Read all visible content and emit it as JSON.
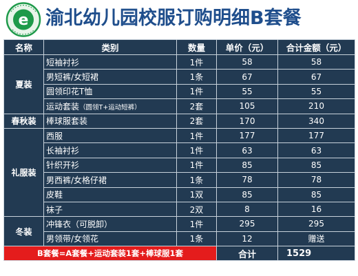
{
  "header": {
    "logo_text": "CHONGQING YUBEI KINDERGARTEN 渝北幼儿园",
    "title": "渝北幼儿园校服订购明细B套餐"
  },
  "columns": {
    "name": "名称",
    "type": "类别",
    "qty": "数量",
    "price": "单价（元）",
    "total": "合计金额（元）"
  },
  "groups": [
    {
      "name": "夏装",
      "rows": [
        {
          "type": "短袖衬衫",
          "type_note": "",
          "qty": "1件",
          "price": "58",
          "total": "58"
        },
        {
          "type": "男短裤/女短裙",
          "type_note": "",
          "qty": "1条",
          "price": "67",
          "total": "67"
        },
        {
          "type": "圆领印花T恤",
          "type_note": "",
          "qty": "1件",
          "price": "55",
          "total": "55"
        },
        {
          "type": "运动套装",
          "type_note": "（圆领T+运动短裤）",
          "qty": "2套",
          "price": "105",
          "total": "210"
        }
      ]
    },
    {
      "name": "春秋装",
      "rows": [
        {
          "type": "棒球服套装",
          "type_note": "",
          "qty": "2套",
          "price": "170",
          "total": "340"
        }
      ]
    },
    {
      "name": "礼服装",
      "rows": [
        {
          "type": "西服",
          "type_note": "",
          "qty": "1件",
          "price": "177",
          "total": "177"
        },
        {
          "type": "长袖衬衫",
          "type_note": "",
          "qty": "1件",
          "price": "63",
          "total": "63"
        },
        {
          "type": "针织开衫",
          "type_note": "",
          "qty": "1件",
          "price": "85",
          "total": "85"
        },
        {
          "type": "男西裤/女格仔裙",
          "type_note": "",
          "qty": "1条",
          "price": "78",
          "total": "78"
        },
        {
          "type": "皮鞋",
          "type_note": "",
          "qty": "1双",
          "price": "85",
          "total": "85"
        },
        {
          "type": "袜子",
          "type_note": "",
          "qty": "2双",
          "price": "8",
          "total": "16"
        }
      ]
    },
    {
      "name": "冬装",
      "rows": [
        {
          "type": "冲锋衣（可脱卸）",
          "type_note": "",
          "qty": "1件",
          "price": "295",
          "total": "295"
        },
        {
          "type": "男领带/女领花",
          "type_note": "",
          "qty": "1条",
          "price": "12",
          "total": "赠送"
        }
      ]
    }
  ],
  "footer": {
    "package_note": "B套餐=A套餐+运动套装1套+棒球服1套",
    "sum_label": "合计",
    "sum_value": "1529"
  },
  "colors": {
    "table_bg": "#223a52",
    "title": "#1f4e8c",
    "footer_red": "#e41c1c",
    "logo_green": "#1e9a4a"
  }
}
